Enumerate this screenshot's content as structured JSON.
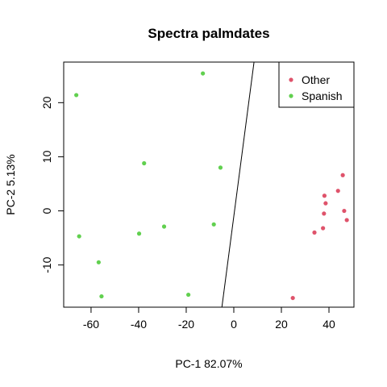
{
  "chart_data": {
    "type": "scatter",
    "title": "Spectra palmdates",
    "xlabel": "PC-1 82.07%",
    "ylabel": "PC-2  5.13%",
    "xlim": [
      -71.5,
      50.5
    ],
    "ylim": [
      -17.8,
      27.5
    ],
    "xticks": [
      -60,
      -40,
      -20,
      0,
      20,
      40
    ],
    "yticks": [
      -10,
      0,
      10,
      20
    ],
    "grid": false,
    "legend_position": "top-right",
    "series": [
      {
        "name": "Other",
        "color": "#DF536B",
        "points": [
          [
            24.8,
            -16.1
          ],
          [
            33.9,
            -4.0
          ],
          [
            37.5,
            -3.2
          ],
          [
            37.9,
            -0.5
          ],
          [
            38.1,
            2.8
          ],
          [
            38.6,
            1.4
          ],
          [
            43.8,
            3.7
          ],
          [
            45.8,
            6.6
          ],
          [
            46.4,
            0.0
          ],
          [
            47.5,
            -1.7
          ]
        ]
      },
      {
        "name": "Spanish",
        "color": "#61D04F",
        "points": [
          [
            -66.2,
            21.4
          ],
          [
            -65.0,
            -4.7
          ],
          [
            -56.8,
            -9.5
          ],
          [
            -55.6,
            -15.8
          ],
          [
            -39.8,
            -4.2
          ],
          [
            -37.7,
            8.8
          ],
          [
            -29.3,
            -2.9
          ],
          [
            -19.1,
            -15.5
          ],
          [
            -13.0,
            25.4
          ],
          [
            -8.4,
            -2.5
          ],
          [
            -5.6,
            8.0
          ]
        ]
      }
    ],
    "annotations": [
      {
        "type": "line",
        "from": [
          -5.0,
          -17.8
        ],
        "to": [
          8.5,
          27.5
        ],
        "color": "#000000"
      }
    ]
  }
}
